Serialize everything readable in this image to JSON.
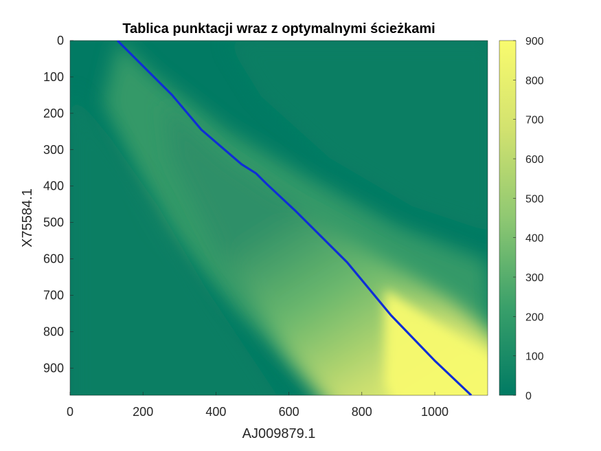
{
  "chart_data": {
    "type": "heatmap",
    "title": "Tablica punktacji wraz z optymalnymi ścieżkami",
    "xlabel": "AJ009879.1",
    "ylabel": "X75584.1",
    "xlim": [
      0,
      1145
    ],
    "ylim": [
      975,
      0
    ],
    "x_ticks": [
      "0",
      "200",
      "400",
      "600",
      "800",
      "1000"
    ],
    "y_ticks": [
      "0",
      "100",
      "200",
      "300",
      "400",
      "500",
      "600",
      "700",
      "800",
      "900"
    ],
    "colorbar": {
      "range": [
        0,
        900
      ],
      "ticks": [
        "0",
        "100",
        "200",
        "300",
        "400",
        "500",
        "600",
        "700",
        "800",
        "900"
      ],
      "colors": [
        "#007a63",
        "#3aa06a",
        "#8fc872",
        "#d2e26f",
        "#f9fb6e"
      ]
    },
    "optimal_path": {
      "color": "#0f2ed6",
      "points": [
        [
          130,
          0
        ],
        [
          280,
          150
        ],
        [
          360,
          245
        ],
        [
          470,
          340
        ],
        [
          510,
          365
        ],
        [
          540,
          395
        ],
        [
          620,
          470
        ],
        [
          760,
          610
        ],
        [
          880,
          755
        ],
        [
          1000,
          880
        ],
        [
          1100,
          975
        ]
      ]
    }
  }
}
